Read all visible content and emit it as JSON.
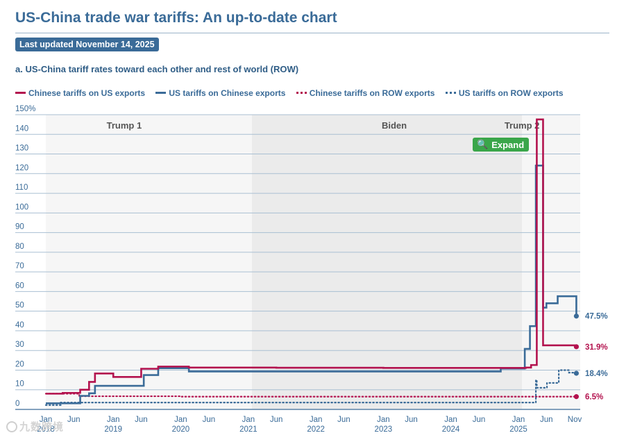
{
  "header": {
    "title": "US-China trade war tariffs: An up-to-date chart",
    "updated": "Last updated November 14, 2025",
    "subtitle": "a. US-China tariff rates toward each other and rest of world (ROW)"
  },
  "legend": [
    {
      "label": "Chinese tariffs on US exports",
      "style": "solid-red"
    },
    {
      "label": "US tariffs on Chinese exports",
      "style": "solid-blue"
    },
    {
      "label": "Chinese tariffs on ROW exports",
      "style": "dot-red"
    },
    {
      "label": "US tariffs on ROW exports",
      "style": "dot-blue"
    }
  ],
  "expand_button": {
    "label": "Expand",
    "icon": "magnifier-icon"
  },
  "watermark": "九数跨境",
  "colors": {
    "red": "#b3124e",
    "blue": "#3a6b98",
    "biden_band": "#ebebeb",
    "other_band": "#f6f6f6",
    "expand": "#3aa64a"
  },
  "chart_data": {
    "type": "line",
    "ylim": [
      0,
      150
    ],
    "yticks": [
      0,
      10,
      20,
      30,
      40,
      50,
      60,
      70,
      80,
      90,
      100,
      110,
      120,
      130,
      140,
      150
    ],
    "ytick_labels": [
      "0",
      "10",
      "20",
      "30",
      "40",
      "50",
      "60",
      "70",
      "80",
      "90",
      "100",
      "110",
      "120",
      "130",
      "140",
      "150%"
    ],
    "xlim": [
      "2018-01-01",
      "2025-12-01"
    ],
    "xticks": [
      {
        "date": "2018-01-01",
        "month": "Jan",
        "year": "2018"
      },
      {
        "date": "2018-06-01",
        "month": "Jun",
        "year": ""
      },
      {
        "date": "2019-01-01",
        "month": "Jan",
        "year": "2019"
      },
      {
        "date": "2019-06-01",
        "month": "Jun",
        "year": ""
      },
      {
        "date": "2020-01-01",
        "month": "Jan",
        "year": "2020"
      },
      {
        "date": "2020-06-01",
        "month": "Jun",
        "year": ""
      },
      {
        "date": "2021-01-01",
        "month": "Jan",
        "year": "2021"
      },
      {
        "date": "2021-06-01",
        "month": "Jun",
        "year": ""
      },
      {
        "date": "2022-01-01",
        "month": "Jan",
        "year": "2022"
      },
      {
        "date": "2022-06-01",
        "month": "Jun",
        "year": ""
      },
      {
        "date": "2023-01-01",
        "month": "Jan",
        "year": "2023"
      },
      {
        "date": "2023-06-01",
        "month": "Jun",
        "year": ""
      },
      {
        "date": "2024-01-01",
        "month": "Jan",
        "year": "2024"
      },
      {
        "date": "2024-06-01",
        "month": "Jun",
        "year": ""
      },
      {
        "date": "2025-01-01",
        "month": "Jan",
        "year": "2025"
      },
      {
        "date": "2025-06-01",
        "month": "Jun",
        "year": ""
      },
      {
        "date": "2025-11-01",
        "month": "Nov",
        "year": ""
      }
    ],
    "periods": [
      {
        "label": "Trump 1",
        "start": "2018-01-01",
        "end": "2021-01-20",
        "shade": "light"
      },
      {
        "label": "Biden",
        "start": "2021-01-20",
        "end": "2025-01-20",
        "shade": "dark"
      },
      {
        "label": "Trump 2",
        "start": "2025-01-20",
        "end": "2025-12-01",
        "shade": "light"
      }
    ],
    "series": [
      {
        "name": "Chinese tariffs on US exports",
        "style": "solid",
        "color": "#b3124e",
        "end_label": "31.9%",
        "points": [
          [
            "2018-01-01",
            8.0
          ],
          [
            "2018-04-02",
            8.4
          ],
          [
            "2018-07-06",
            10.0
          ],
          [
            "2018-08-23",
            14.0
          ],
          [
            "2018-09-24",
            18.3
          ],
          [
            "2019-01-01",
            16.5
          ],
          [
            "2019-06-01",
            20.7
          ],
          [
            "2019-09-01",
            21.8
          ],
          [
            "2020-02-14",
            21.3
          ],
          [
            "2021-06-01",
            21.2
          ],
          [
            "2023-01-01",
            21.1
          ],
          [
            "2025-01-01",
            21.1
          ],
          [
            "2025-02-10",
            21.3
          ],
          [
            "2025-03-10",
            22.6
          ],
          [
            "2025-04-04",
            22.6
          ],
          [
            "2025-04-10",
            147.6
          ],
          [
            "2025-05-14",
            32.6
          ],
          [
            "2025-11-10",
            31.9
          ]
        ]
      },
      {
        "name": "US tariffs on Chinese exports",
        "style": "solid",
        "color": "#3a6b98",
        "end_label": "47.5%",
        "points": [
          [
            "2018-01-01",
            3.1
          ],
          [
            "2018-07-06",
            6.9
          ],
          [
            "2018-08-23",
            8.2
          ],
          [
            "2018-09-24",
            12.0
          ],
          [
            "2019-06-15",
            17.5
          ],
          [
            "2019-09-01",
            21.0
          ],
          [
            "2020-02-14",
            19.3
          ],
          [
            "2024-09-27",
            20.8
          ],
          [
            "2025-02-04",
            30.8
          ],
          [
            "2025-03-04",
            42.4
          ],
          [
            "2025-04-05",
            124.1
          ],
          [
            "2025-04-10",
            124.1
          ],
          [
            "2025-05-14",
            51.8
          ],
          [
            "2025-06-01",
            54.0
          ],
          [
            "2025-08-01",
            57.6
          ],
          [
            "2025-11-10",
            47.5
          ]
        ]
      },
      {
        "name": "Chinese tariffs on ROW exports",
        "style": "dotted",
        "color": "#b3124e",
        "end_label": "6.5%",
        "points": [
          [
            "2018-01-01",
            8.0
          ],
          [
            "2018-07-01",
            6.7
          ],
          [
            "2019-01-01",
            6.7
          ],
          [
            "2020-01-01",
            6.5
          ],
          [
            "2023-01-01",
            6.5
          ],
          [
            "2025-11-10",
            6.5
          ]
        ]
      },
      {
        "name": "US tariffs on ROW exports",
        "style": "dotted",
        "color": "#3a6b98",
        "end_label": "18.4%",
        "points": [
          [
            "2018-01-01",
            2.2
          ],
          [
            "2018-03-23",
            3.5
          ],
          [
            "2025-03-12",
            3.5
          ],
          [
            "2025-04-05",
            15.0
          ],
          [
            "2025-04-10",
            11.0
          ],
          [
            "2025-06-04",
            13.5
          ],
          [
            "2025-08-07",
            20.0
          ],
          [
            "2025-10-01",
            18.7
          ],
          [
            "2025-11-10",
            18.4
          ]
        ]
      }
    ]
  }
}
